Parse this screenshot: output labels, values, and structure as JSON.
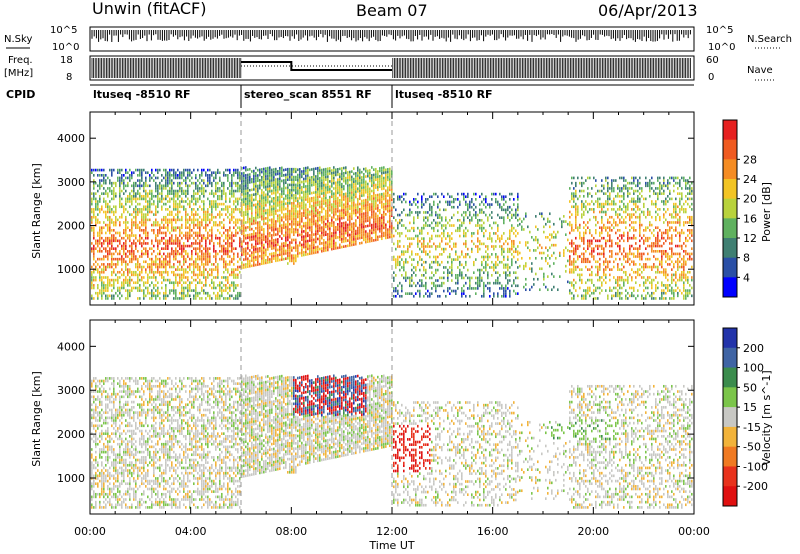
{
  "header": {
    "station": "Unwin (fitACF)",
    "beam": "Beam 07",
    "date": "06/Apr/2013"
  },
  "top_panels": {
    "nsky": {
      "label": "N.Sky",
      "ytick_top": "10^5",
      "ytick_bottom": "10^0",
      "right_label": "N.Search",
      "right_tick_top": "10^5",
      "right_tick_bottom": "10^0"
    },
    "freq": {
      "label_line1": "Freq.",
      "label_line2": "[MHz]",
      "ytick_top": "18",
      "ytick_bottom": "8",
      "right_label": "Nave",
      "right_tick_top": "60",
      "right_tick_bottom": "0"
    },
    "cpid": {
      "label": "CPID",
      "segments": [
        {
          "name": "ltuseq -8510 RF",
          "start_hr": 0,
          "end_hr": 6
        },
        {
          "name": "stereo_scan 8551 RF",
          "start_hr": 6,
          "end_hr": 12
        },
        {
          "name": "ltuseq -8510 RF",
          "start_hr": 12,
          "end_hr": 24
        }
      ]
    }
  },
  "chart_data": [
    {
      "type": "heatmap",
      "name": "power",
      "ylabel": "Slant Range [km]",
      "ylim": [
        180,
        4600
      ],
      "yticks": [
        "1000",
        "2000",
        "3000",
        "4000"
      ],
      "colorbar_label": "Power [dB]",
      "colorbar_ticks": [
        "4",
        "8",
        "12",
        "16",
        "20",
        "24",
        "28"
      ],
      "colors": [
        "#0000ff",
        "#2a4fa6",
        "#3f7f72",
        "#5fb15f",
        "#b8d23c",
        "#f2c424",
        "#f58c23",
        "#ef5a20",
        "#e62020"
      ],
      "xlim": [
        0,
        24
      ]
    },
    {
      "type": "heatmap",
      "name": "velocity",
      "ylabel": "Slant Range [km]",
      "ylim": [
        180,
        4600
      ],
      "yticks": [
        "1000",
        "2000",
        "3000",
        "4000"
      ],
      "colorbar_label": "Velocity [m s^-1]",
      "colorbar_ticks": [
        "200",
        "100",
        "50",
        "15",
        "-15",
        "-50",
        "-100",
        "-200"
      ],
      "colors": [
        "#2233aa",
        "#3f64a4",
        "#3b8c4d",
        "#7bc54a",
        "#c8c8c4",
        "#f2b33a",
        "#f07a22",
        "#e8321c",
        "#e01010"
      ],
      "xlim": [
        0,
        24
      ],
      "xticks": [
        "00:00",
        "04:00",
        "08:00",
        "12:00",
        "16:00",
        "20:00",
        "00:00"
      ],
      "xlabel": "Time UT"
    }
  ]
}
